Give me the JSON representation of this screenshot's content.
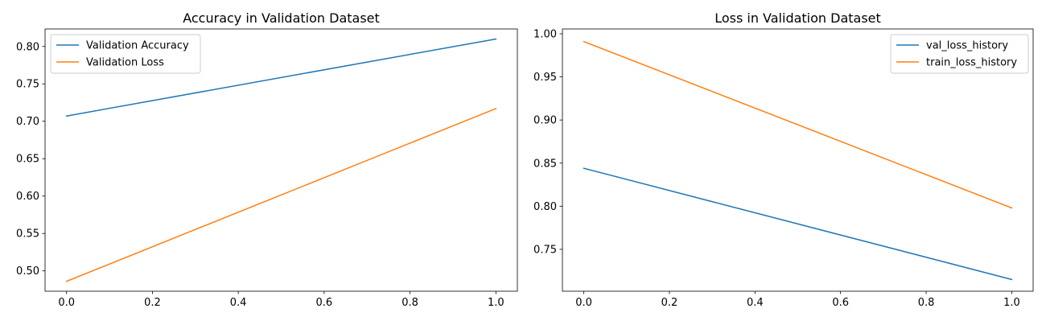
{
  "chart_data": [
    {
      "type": "line",
      "title": "Accuracy in Validation Dataset",
      "xlabel": "",
      "ylabel": "",
      "xlim": [
        -0.05,
        1.05
      ],
      "ylim": [
        0.4728,
        0.8234
      ],
      "xticks": [
        0.0,
        0.2,
        0.4,
        0.6,
        0.8,
        1.0
      ],
      "xtick_labels": [
        "0.0",
        "0.2",
        "0.4",
        "0.6",
        "0.8",
        "1.0"
      ],
      "yticks": [
        0.5,
        0.55,
        0.6,
        0.65,
        0.7,
        0.75,
        0.8
      ],
      "ytick_labels": [
        "0.50",
        "0.55",
        "0.60",
        "0.65",
        "0.70",
        "0.75",
        "0.80"
      ],
      "legend_position": "upper-left",
      "series": [
        {
          "name": "Validation Accuracy",
          "color": "#1f77b4",
          "x": [
            0,
            1
          ],
          "y": [
            0.707,
            0.81
          ]
        },
        {
          "name": "Validation Loss",
          "color": "#ff7f0e",
          "x": [
            0,
            1
          ],
          "y": [
            0.486,
            0.717
          ]
        }
      ]
    },
    {
      "type": "line",
      "title": "Loss in Validation Dataset",
      "xlabel": "",
      "ylabel": "",
      "xlim": [
        -0.05,
        1.05
      ],
      "ylim": [
        0.7014,
        1.0056
      ],
      "xticks": [
        0.0,
        0.2,
        0.4,
        0.6,
        0.8,
        1.0
      ],
      "xtick_labels": [
        "0.0",
        "0.2",
        "0.4",
        "0.6",
        "0.8",
        "1.0"
      ],
      "yticks": [
        0.75,
        0.8,
        0.85,
        0.9,
        0.95,
        1.0
      ],
      "ytick_labels": [
        "0.75",
        "0.80",
        "0.85",
        "0.90",
        "0.95",
        "1.00"
      ],
      "legend_position": "upper-right",
      "series": [
        {
          "name": "val_loss_history",
          "color": "#1f77b4",
          "x": [
            0,
            1
          ],
          "y": [
            0.844,
            0.715
          ]
        },
        {
          "name": "train_loss_history",
          "color": "#ff7f0e",
          "x": [
            0,
            1
          ],
          "y": [
            0.991,
            0.798
          ]
        }
      ]
    }
  ]
}
